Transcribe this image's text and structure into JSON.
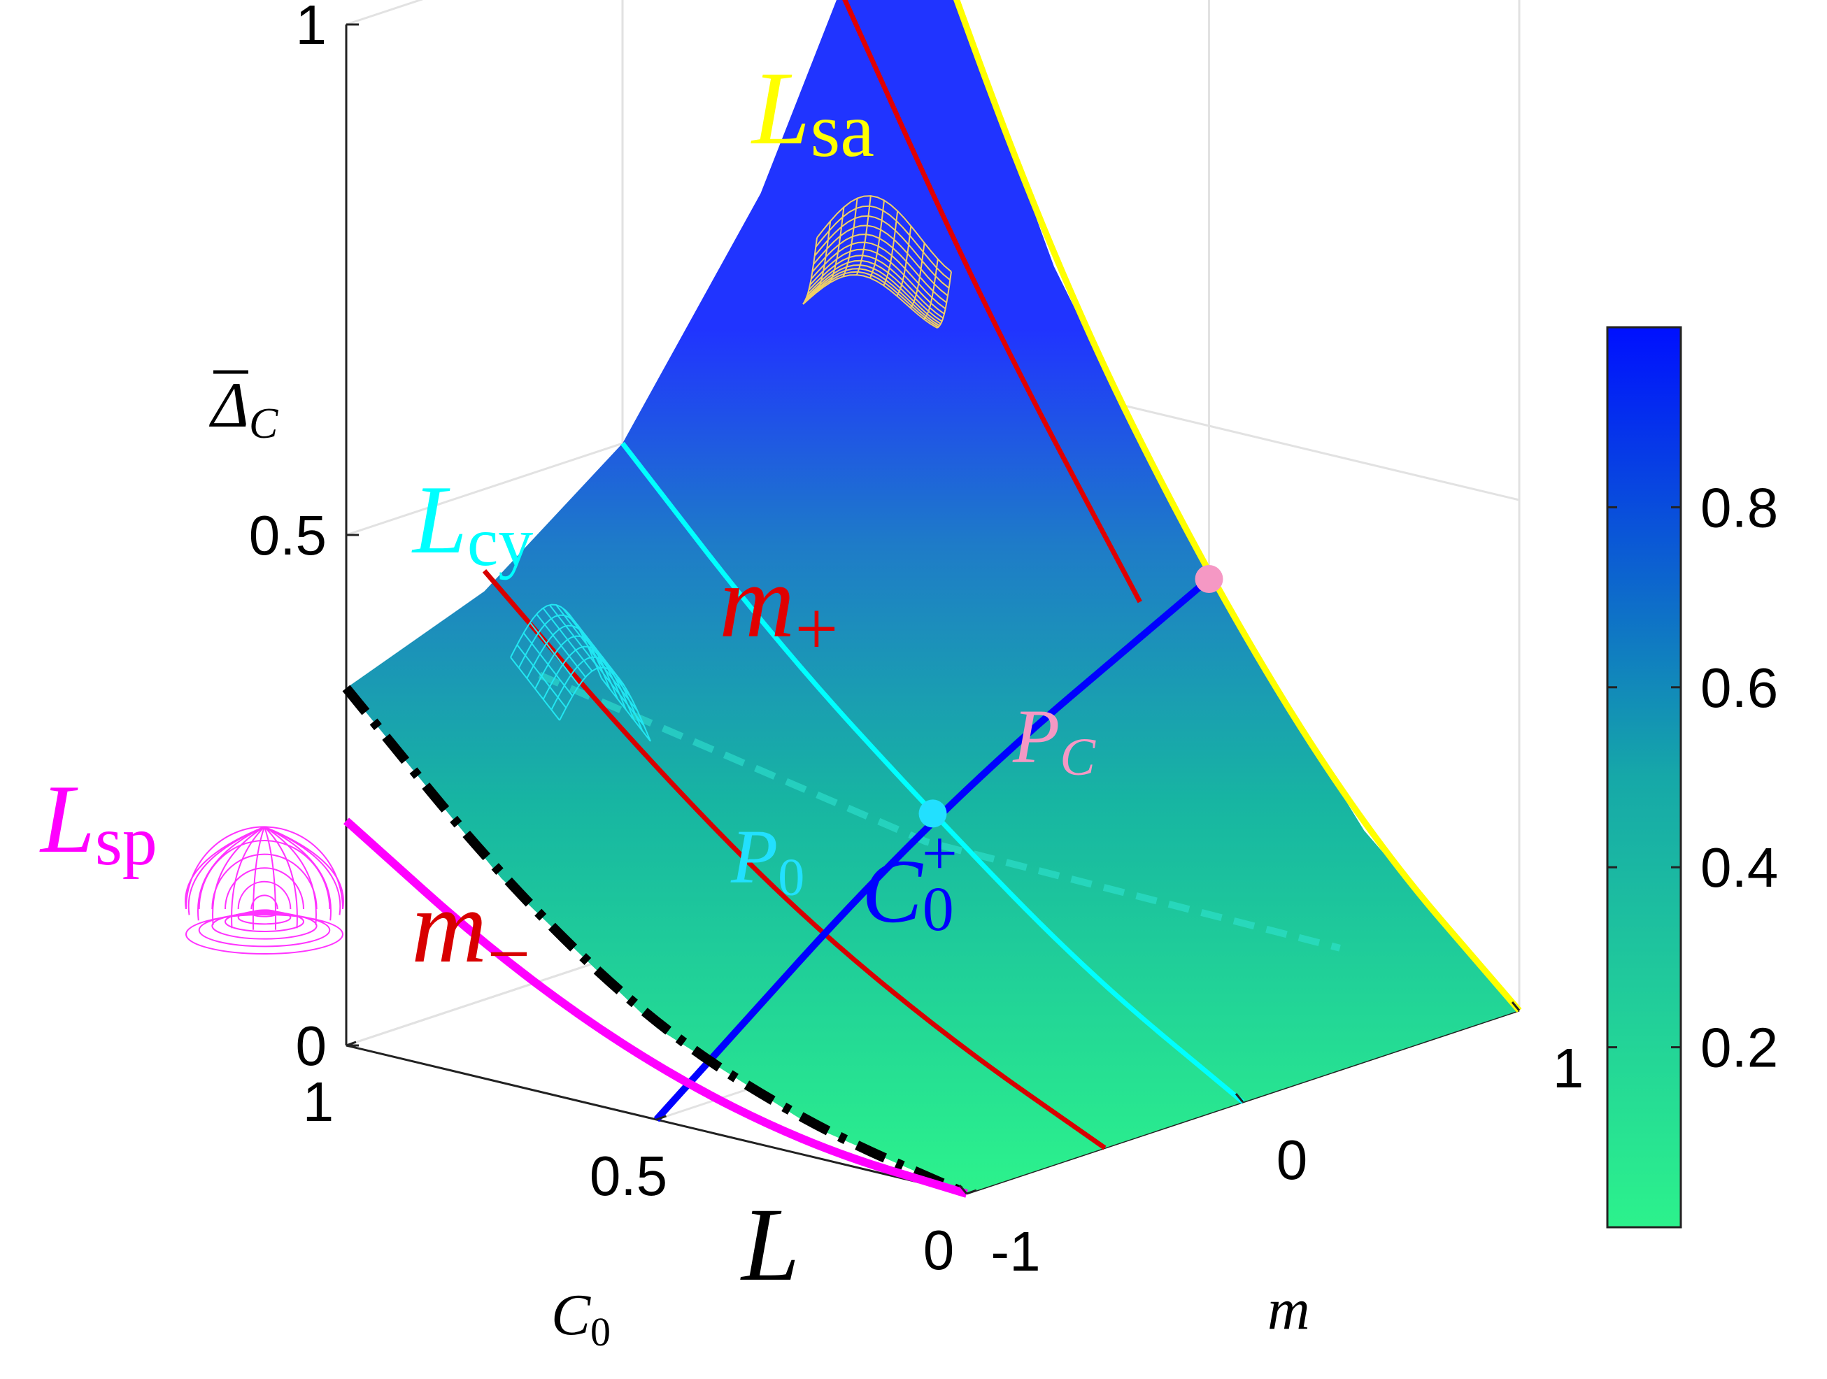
{
  "chart_data": {
    "type": "surface",
    "axes": {
      "x": {
        "label_symbol": "C",
        "label_sub": "0",
        "ticks": [
          "1",
          "0.5",
          "0"
        ],
        "range": [
          0,
          1
        ]
      },
      "y": {
        "label": "m",
        "ticks": [
          "-1",
          "0",
          "1"
        ],
        "range": [
          -1,
          1
        ]
      },
      "z": {
        "label_symbol": "Δ",
        "label_sub": "C",
        "ticks": [
          "0",
          "0.5",
          "1"
        ],
        "range": [
          0,
          1
        ]
      }
    },
    "colorbar": {
      "ticks": [
        "0.2",
        "0.4",
        "0.6",
        "0.8"
      ],
      "range": [
        0,
        1
      ],
      "colors": {
        "low": "#2cf28c",
        "mid": "#16a8a8",
        "high": "#0010ff"
      }
    },
    "grid": true,
    "surface_corners": [
      {
        "C0": 1,
        "m": -1,
        "z": 0.35
      },
      {
        "C0": 1,
        "m": 0,
        "z": 0.5
      },
      {
        "C0": 1,
        "m": 1,
        "z": 1.0
      },
      {
        "C0": 0,
        "m": -1,
        "z": 0.0
      },
      {
        "C0": 0,
        "m": 0,
        "z": 0.0
      },
      {
        "C0": 0,
        "m": 1,
        "z": 0.0
      }
    ],
    "curves": [
      {
        "name": "L_sa",
        "color": "#ffff00",
        "points": [
          [
            1,
            1,
            1.0
          ],
          [
            0.75,
            1,
            0.62
          ],
          [
            0.5,
            1,
            0.35
          ],
          [
            0.25,
            1,
            0.14
          ],
          [
            0,
            1,
            0.0
          ]
        ]
      },
      {
        "name": "L_cy",
        "color": "#00ffff",
        "points": [
          [
            1,
            0,
            0.5
          ],
          [
            0.75,
            0,
            0.34
          ],
          [
            0.5,
            0,
            0.21
          ],
          [
            0.25,
            0,
            0.09
          ],
          [
            0,
            0,
            0.0
          ]
        ]
      },
      {
        "name": "m_plus",
        "color": "#e00000",
        "points": [
          [
            1,
            0.75,
            0.9
          ],
          [
            0.75,
            0.75,
            0.6
          ],
          [
            0.5,
            0.75,
            0.35
          ]
        ]
      },
      {
        "name": "m_minus",
        "color": "#d80000",
        "points": [
          [
            1,
            -0.5,
            0.42
          ],
          [
            0.75,
            -0.5,
            0.28
          ],
          [
            0.5,
            -0.5,
            0.16
          ],
          [
            0.25,
            -0.5,
            0.07
          ],
          [
            0,
            -0.5,
            0.0
          ]
        ]
      },
      {
        "name": "C0_plus",
        "color": "#0000ff",
        "points": [
          [
            0.5,
            1,
            0.35
          ],
          [
            0.5,
            0,
            0.21
          ],
          [
            0.5,
            -1,
            0.0
          ]
        ]
      },
      {
        "name": "L_dashed",
        "color": "#000000",
        "points": [
          [
            1,
            -1,
            0.35
          ],
          [
            0.75,
            -1,
            0.2
          ],
          [
            0.5,
            -1,
            0.09
          ],
          [
            0.25,
            -1,
            0.03
          ],
          [
            0,
            -1,
            0.0
          ]
        ]
      },
      {
        "name": "L_sp",
        "color": "#ff00ff",
        "points": [
          [
            1,
            -1,
            0.22
          ],
          [
            0.75,
            -1,
            0.12
          ],
          [
            0.5,
            -1,
            0.05
          ],
          [
            0.25,
            -1,
            0.01
          ],
          [
            0,
            -1,
            0.0
          ]
        ]
      }
    ],
    "points": [
      {
        "name": "P_C",
        "C0": 0.5,
        "m": 1,
        "z": 0.35,
        "color": "#f598c4"
      },
      {
        "name": "P_0",
        "C0": 0.5,
        "m": 0,
        "z": 0.21,
        "color": "#22e0ff"
      }
    ]
  },
  "annotations": {
    "L": {
      "main": "L"
    },
    "L_sa": {
      "main": "L",
      "sub": "sa",
      "color": "#ffff00"
    },
    "L_cy": {
      "main": "L",
      "sub": "cy",
      "color": "#00ffff"
    },
    "L_sp": {
      "main": "L",
      "sub": "sp",
      "color": "#ff00ff"
    },
    "m_plus": {
      "main": "m",
      "sub": "+",
      "color": "#e00000"
    },
    "m_minus": {
      "main": "m",
      "sub": "−",
      "color": "#d80000"
    },
    "P_C": {
      "main": "P",
      "sub": "C",
      "color": "#f598c4"
    },
    "P_0": {
      "main": "P",
      "sub": "0",
      "color": "#22e0ff"
    },
    "C0_plus": {
      "main": "C",
      "sub": "0",
      "sup": "+",
      "color": "#0000ff"
    }
  },
  "icons": {
    "saddle": "saddle-surface-icon",
    "cylinder": "cylinder-surface-icon",
    "sphere": "hemisphere-surface-icon"
  }
}
